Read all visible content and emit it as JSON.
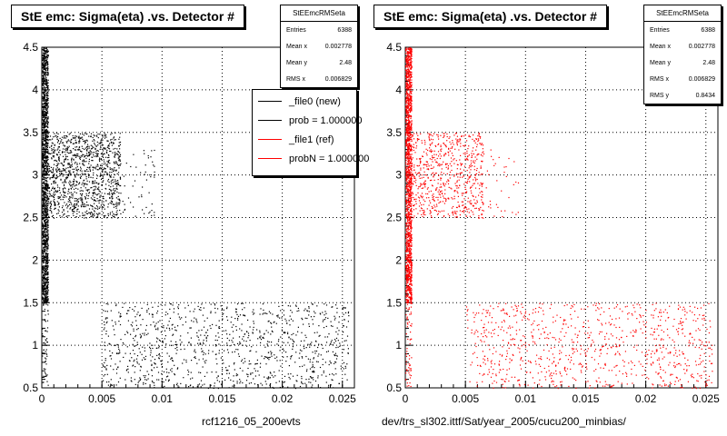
{
  "charts": [
    {
      "title": "StE emc: Sigma(eta) .vs. Detector #",
      "stats": {
        "name": "StEEmcRMSeta",
        "rows": [
          {
            "label": "Entries",
            "value": "6388"
          },
          {
            "label": "Mean x",
            "value": "0.002778"
          },
          {
            "label": "Mean y",
            "value": "2.48"
          },
          {
            "label": "RMS x",
            "value": "0.006829"
          }
        ]
      },
      "legend": [
        {
          "label": "_file0 (new)",
          "color": "#000000"
        },
        {
          "label": "prob = 1.000000",
          "color": "#000000"
        },
        {
          "label": "_file1 (ref)",
          "color": "#ff0000"
        },
        {
          "label": "probN = 1.000000",
          "color": "#ff0000"
        }
      ],
      "caption": "rcf1216_05_200evts",
      "marker_color": "#000000"
    },
    {
      "title": "StE emc: Sigma(eta) .vs. Detector #",
      "stats": {
        "name": "StEEmcRMSeta",
        "rows": [
          {
            "label": "Entries",
            "value": "6388"
          },
          {
            "label": "Mean x",
            "value": "0.002778"
          },
          {
            "label": "Mean y",
            "value": "2.48"
          },
          {
            "label": "RMS x",
            "value": "0.006829"
          },
          {
            "label": "RMS y",
            "value": "0.8434"
          }
        ]
      },
      "caption": "dev/trs_sl302.ittf/Sat/year_2005/cucu200_minbias/",
      "marker_color": "#ff0000"
    }
  ],
  "chart_data": [
    {
      "type": "scatter",
      "title": "StE emc: Sigma(eta) .vs. Detector #",
      "xlim": [
        0,
        0.026
      ],
      "ylim": [
        0.5,
        4.5
      ],
      "xticks": [
        "0",
        "0.005",
        "0.01",
        "0.015",
        "0.02",
        "0.025"
      ],
      "yticks": [
        "0.5",
        "1",
        "1.5",
        "2",
        "2.5",
        "3",
        "3.5",
        "4",
        "4.5"
      ],
      "grid": true,
      "legend_position": "top-right",
      "series": [
        {
          "name": "_file0 (new)",
          "color": "#000000",
          "clusters": [
            {
              "x": [
                0,
                0.0005
              ],
              "y": [
                1.5,
                4.5
              ],
              "count": 1600
            },
            {
              "x": [
                0.0005,
                0.0065
              ],
              "y": [
                2.5,
                3.5
              ],
              "count": 1200
            },
            {
              "x": [
                0.006,
                0.0095
              ],
              "y": [
                2.5,
                3.3
              ],
              "count": 60
            },
            {
              "x": [
                0.005,
                0.0255
              ],
              "y": [
                0.5,
                1.5
              ],
              "count": 1100
            },
            {
              "x": [
                0,
                0.0005
              ],
              "y": [
                0.5,
                1.5
              ],
              "count": 60
            }
          ]
        }
      ]
    },
    {
      "type": "scatter",
      "title": "StE emc: Sigma(eta) .vs. Detector #",
      "xlim": [
        0,
        0.026
      ],
      "ylim": [
        0.5,
        4.5
      ],
      "xticks": [
        "0",
        "0.005",
        "0.01",
        "0.015",
        "0.02",
        "0.025"
      ],
      "yticks": [
        "0.5",
        "1",
        "1.5",
        "2",
        "2.5",
        "3",
        "3.5",
        "4",
        "4.5"
      ],
      "grid": true,
      "series": [
        {
          "name": "_file1 (ref)",
          "color": "#ff0000",
          "clusters": [
            {
              "x": [
                0,
                0.0005
              ],
              "y": [
                1.5,
                4.5
              ],
              "count": 1600
            },
            {
              "x": [
                0.0005,
                0.0065
              ],
              "y": [
                2.5,
                3.5
              ],
              "count": 700
            },
            {
              "x": [
                0.006,
                0.0095
              ],
              "y": [
                2.5,
                3.3
              ],
              "count": 40
            },
            {
              "x": [
                0.005,
                0.0255
              ],
              "y": [
                0.5,
                1.5
              ],
              "count": 900
            },
            {
              "x": [
                0,
                0.0005
              ],
              "y": [
                0.5,
                1.5
              ],
              "count": 60
            }
          ]
        }
      ]
    }
  ]
}
